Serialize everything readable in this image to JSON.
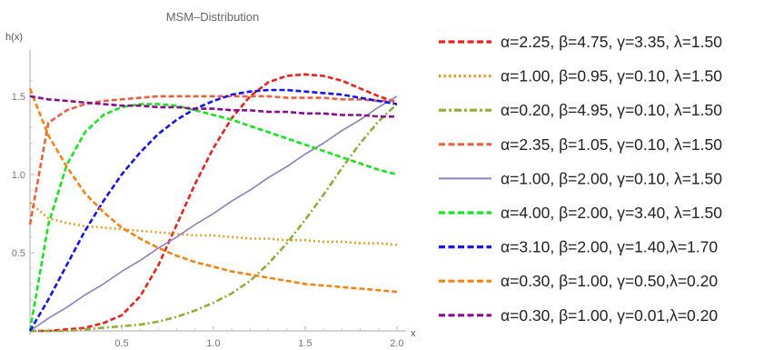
{
  "chart_data": {
    "type": "line",
    "title": "MSM–Distribution",
    "xlabel": "x",
    "ylabel": "h(x)",
    "xlim": [
      0,
      2.05
    ],
    "ylim": [
      0,
      1.72
    ],
    "x_ticks": [
      "0.5",
      "1.0",
      "1.5",
      "2.0"
    ],
    "y_ticks": [
      "0.5",
      "1.0",
      "1.5"
    ],
    "x_tick_values": [
      0.5,
      1.0,
      1.5,
      2.0
    ],
    "y_tick_values": [
      0.5,
      1.0,
      1.5
    ],
    "grid": false,
    "legend_position": "right",
    "x": [
      0,
      0.1,
      0.2,
      0.3,
      0.4,
      0.5,
      0.6,
      0.7,
      0.8,
      0.9,
      1.0,
      1.1,
      1.2,
      1.3,
      1.4,
      1.5,
      1.6,
      1.7,
      1.8,
      1.9,
      2.0
    ],
    "series": [
      {
        "name": "α=2.25, β=4.75, γ=3.35, λ=1.50",
        "color": "#e8231e",
        "dash": "dashed",
        "values": [
          0,
          0.0,
          0.01,
          0.02,
          0.05,
          0.1,
          0.22,
          0.42,
          0.68,
          0.94,
          1.17,
          1.36,
          1.5,
          1.59,
          1.63,
          1.64,
          1.63,
          1.6,
          1.55,
          1.5,
          1.46
        ]
      },
      {
        "name": "α=1.00, β=0.95, γ=0.10, λ=1.50",
        "color": "#dfa12b",
        "dash": "dotted",
        "values": [
          0.82,
          0.72,
          0.69,
          0.67,
          0.66,
          0.65,
          0.64,
          0.63,
          0.62,
          0.61,
          0.61,
          0.6,
          0.59,
          0.59,
          0.58,
          0.58,
          0.57,
          0.57,
          0.56,
          0.56,
          0.55
        ]
      },
      {
        "name": "α=0.20, β=4.95, γ=0.10, λ=1.50",
        "color": "#8fae3a",
        "dash": "dashdot",
        "values": [
          0,
          0.0,
          0.0,
          0.01,
          0.02,
          0.03,
          0.04,
          0.06,
          0.09,
          0.13,
          0.18,
          0.24,
          0.32,
          0.43,
          0.56,
          0.71,
          0.87,
          1.04,
          1.2,
          1.34,
          1.45
        ]
      },
      {
        "name": "α=2.35, β=1.05, γ=0.10, λ=1.50",
        "color": "#e9603f",
        "dash": "dashed",
        "values": [
          0.68,
          1.33,
          1.41,
          1.45,
          1.47,
          1.48,
          1.49,
          1.5,
          1.5,
          1.5,
          1.5,
          1.5,
          1.5,
          1.5,
          1.49,
          1.49,
          1.49,
          1.48,
          1.48,
          1.47,
          1.47
        ]
      },
      {
        "name": "α=1.00, β=2.00, γ=0.10, λ=1.50",
        "color": "#8c7fbd",
        "dash": "solid",
        "values": [
          0,
          0.08,
          0.15,
          0.23,
          0.3,
          0.38,
          0.45,
          0.53,
          0.6,
          0.68,
          0.75,
          0.83,
          0.9,
          0.98,
          1.05,
          1.13,
          1.2,
          1.28,
          1.35,
          1.43,
          1.5
        ]
      },
      {
        "name": "α=4.00, β=2.00, γ=3.40, λ=1.50",
        "color": "#17e31f",
        "dash": "dashed",
        "values": [
          0,
          0.68,
          1.06,
          1.27,
          1.38,
          1.43,
          1.45,
          1.45,
          1.44,
          1.41,
          1.38,
          1.35,
          1.31,
          1.27,
          1.23,
          1.19,
          1.15,
          1.11,
          1.07,
          1.03,
          1.0
        ]
      },
      {
        "name": "α=3.10, β=2.00, γ=1.40,λ=1.70",
        "color": "#1515ea",
        "dash": "dashed",
        "values": [
          0,
          0.2,
          0.42,
          0.64,
          0.83,
          1.0,
          1.14,
          1.26,
          1.35,
          1.42,
          1.47,
          1.51,
          1.53,
          1.54,
          1.54,
          1.53,
          1.52,
          1.51,
          1.49,
          1.47,
          1.45
        ]
      },
      {
        "name": "α=0.30, β=1.00, γ=0.50,λ=0.20",
        "color": "#f28314",
        "dash": "dashed",
        "values": [
          1.55,
          1.25,
          1.05,
          0.88,
          0.76,
          0.66,
          0.59,
          0.53,
          0.48,
          0.44,
          0.41,
          0.38,
          0.36,
          0.34,
          0.32,
          0.3,
          0.29,
          0.28,
          0.27,
          0.26,
          0.25
        ]
      },
      {
        "name": "α=0.30, β=1.00, γ=0.01,λ=0.20",
        "color": "#8a0d8f",
        "dash": "dashed",
        "values": [
          1.5,
          1.48,
          1.47,
          1.46,
          1.45,
          1.44,
          1.44,
          1.43,
          1.43,
          1.42,
          1.42,
          1.41,
          1.41,
          1.4,
          1.4,
          1.39,
          1.39,
          1.38,
          1.38,
          1.37,
          1.37
        ]
      }
    ]
  }
}
